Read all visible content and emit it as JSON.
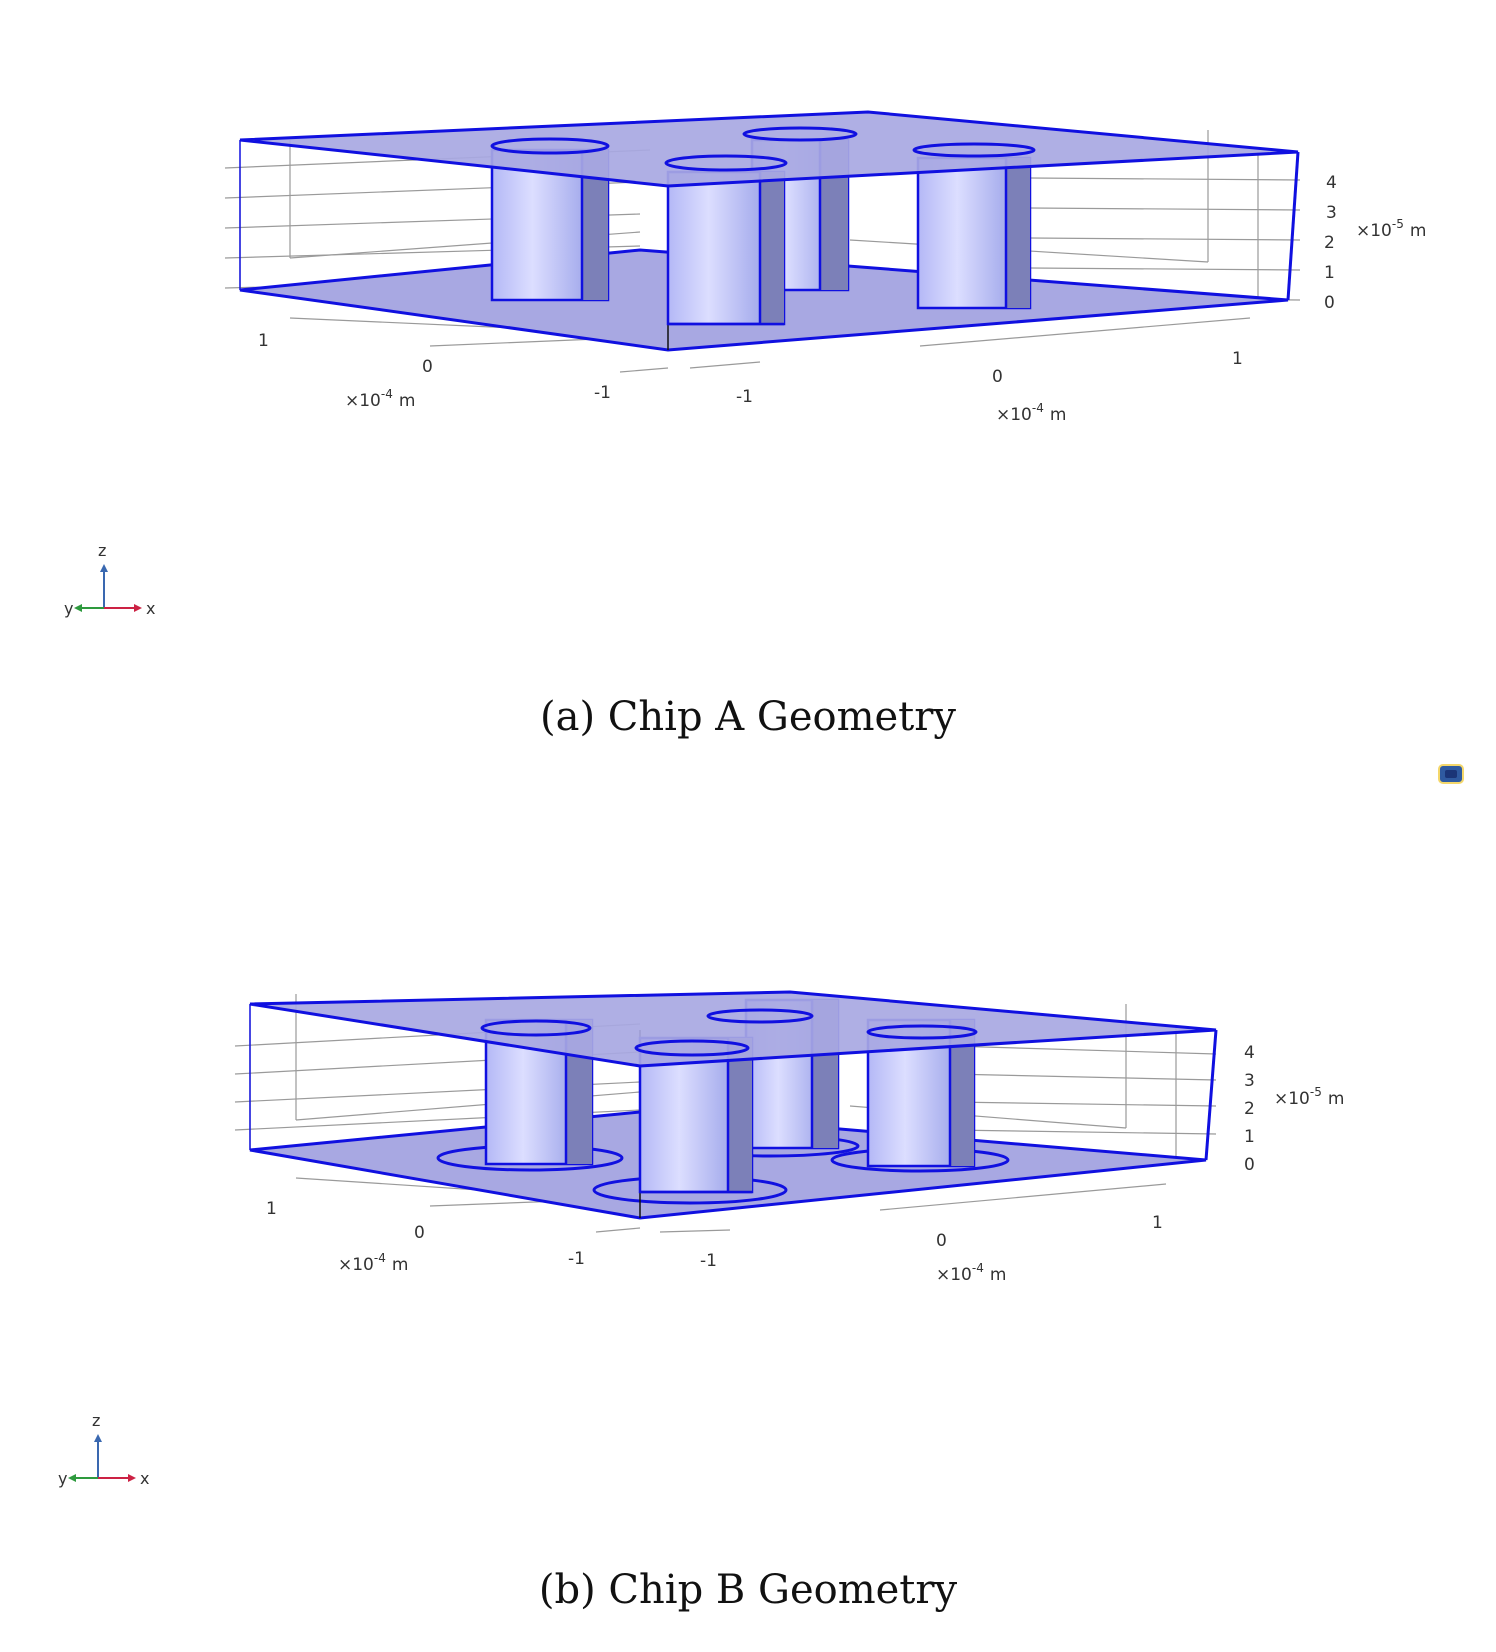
{
  "figures": [
    {
      "id": "a",
      "caption": "(a) Chip A Geometry",
      "variant": "A",
      "z_axis": {
        "ticks": [
          "4",
          "3",
          "2",
          "1",
          "0"
        ],
        "unit_base": "×10",
        "unit_exp": "-5",
        "unit": "m"
      },
      "y_axis": {
        "ticks": [
          "1",
          "0",
          "-1"
        ],
        "unit_base": "×10",
        "unit_exp": "-4",
        "unit": "m"
      },
      "x_axis": {
        "ticks": [
          "-1",
          "0",
          "1"
        ],
        "unit_base": "×10",
        "unit_exp": "-4",
        "unit": "m"
      },
      "triad": {
        "z": "z",
        "y": "y",
        "x": "x"
      }
    },
    {
      "id": "b",
      "caption": "(b) Chip B Geometry",
      "variant": "B",
      "z_axis": {
        "ticks": [
          "4",
          "3",
          "2",
          "1",
          "0"
        ],
        "unit_base": "×10",
        "unit_exp": "-5",
        "unit": "m"
      },
      "y_axis": {
        "ticks": [
          "1",
          "0",
          "-1"
        ],
        "unit_base": "×10",
        "unit_exp": "-4",
        "unit": "m"
      },
      "x_axis": {
        "ticks": [
          "-1",
          "0",
          "1"
        ],
        "unit_base": "×10",
        "unit_exp": "-4",
        "unit": "m"
      },
      "triad": {
        "z": "z",
        "y": "y",
        "x": "x"
      }
    }
  ],
  "colors": {
    "edge": "#1010e0",
    "plate_fill": "#a8a8e2",
    "cylinder_light": "#cfd2ff",
    "cylinder_mid": "#aab0ee",
    "cylinder_dark": "#7c80b8",
    "grid": "#9a9a9a",
    "tick_text": "#333333",
    "triad_z": "#3a68b0",
    "triad_y": "#2e9a3e",
    "triad_x": "#cc2244"
  }
}
